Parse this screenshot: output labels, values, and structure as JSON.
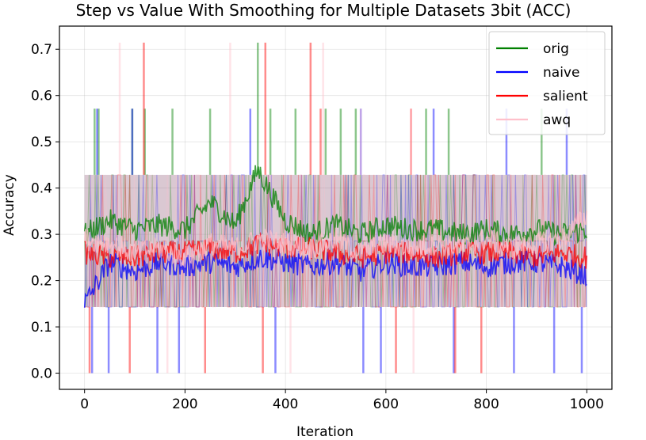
{
  "chart_data": {
    "type": "line",
    "title": "Step vs Value With Smoothing for Multiple Datasets 3bit (ACC)",
    "xlabel": "Iteration",
    "ylabel": "Accuracy",
    "xlim": [
      -50,
      1050
    ],
    "ylim": [
      -0.035,
      0.75
    ],
    "x_ticks": [
      0,
      200,
      400,
      600,
      800,
      1000
    ],
    "y_ticks": [
      0.0,
      0.1,
      0.2,
      0.3,
      0.4,
      0.5,
      0.6,
      0.7
    ],
    "x_tick_labels": [
      "0",
      "200",
      "400",
      "600",
      "800",
      "1000"
    ],
    "y_tick_labels": [
      "0.0",
      "0.1",
      "0.2",
      "0.3",
      "0.4",
      "0.5",
      "0.6",
      "0.7"
    ],
    "grid": true,
    "legend_position": "top-right",
    "x_range": [
      0,
      1000
    ],
    "raw_levels": [
      0.0,
      0.1429,
      0.2857,
      0.4286,
      0.5714,
      0.7143
    ],
    "series": [
      {
        "name": "orig",
        "color": "#008000",
        "raw_mean": 0.31,
        "smoothed_mean": 0.31,
        "smoothed": [
          [
            0,
            0.3
          ],
          [
            50,
            0.33
          ],
          [
            100,
            0.31
          ],
          [
            150,
            0.32
          ],
          [
            200,
            0.31
          ],
          [
            250,
            0.37
          ],
          [
            300,
            0.32
          ],
          [
            345,
            0.44
          ],
          [
            400,
            0.33
          ],
          [
            450,
            0.3
          ],
          [
            500,
            0.32
          ],
          [
            550,
            0.3
          ],
          [
            600,
            0.32
          ],
          [
            650,
            0.31
          ],
          [
            700,
            0.31
          ],
          [
            750,
            0.3
          ],
          [
            800,
            0.31
          ],
          [
            850,
            0.3
          ],
          [
            900,
            0.31
          ],
          [
            950,
            0.3
          ],
          [
            1000,
            0.31
          ]
        ],
        "spikes_high": [
          [
            20,
            0.5714
          ],
          [
            28,
            0.5714
          ],
          [
            95,
            0.5714
          ],
          [
            120,
            0.5714
          ],
          [
            175,
            0.5714
          ],
          [
            250,
            0.5714
          ],
          [
            345,
            0.7143
          ],
          [
            370,
            0.5714
          ],
          [
            420,
            0.5714
          ],
          [
            480,
            0.5714
          ],
          [
            510,
            0.5714
          ],
          [
            540,
            0.5714
          ],
          [
            680,
            0.5714
          ],
          [
            725,
            0.5714
          ],
          [
            910,
            0.5714
          ]
        ]
      },
      {
        "name": "naive",
        "color": "#0000ff",
        "raw_mean": 0.24,
        "smoothed_mean": 0.24,
        "smoothed": [
          [
            0,
            0.15
          ],
          [
            50,
            0.24
          ],
          [
            100,
            0.22
          ],
          [
            150,
            0.24
          ],
          [
            200,
            0.23
          ],
          [
            250,
            0.24
          ],
          [
            300,
            0.23
          ],
          [
            350,
            0.25
          ],
          [
            400,
            0.24
          ],
          [
            450,
            0.23
          ],
          [
            500,
            0.24
          ],
          [
            550,
            0.22
          ],
          [
            600,
            0.24
          ],
          [
            650,
            0.23
          ],
          [
            700,
            0.23
          ],
          [
            750,
            0.24
          ],
          [
            800,
            0.23
          ],
          [
            850,
            0.24
          ],
          [
            900,
            0.24
          ],
          [
            950,
            0.23
          ],
          [
            1000,
            0.21
          ]
        ],
        "spikes_high": [
          [
            25,
            0.5714
          ],
          [
            95,
            0.5714
          ],
          [
            330,
            0.5714
          ],
          [
            550,
            0.5714
          ],
          [
            695,
            0.5714
          ],
          [
            840,
            0.5714
          ],
          [
            960,
            0.5714
          ]
        ],
        "spikes_low": [
          [
            15,
            0.0
          ],
          [
            48,
            0.0
          ],
          [
            145,
            0.0
          ],
          [
            188,
            0.0
          ],
          [
            380,
            0.0
          ],
          [
            555,
            0.0
          ],
          [
            590,
            0.0
          ],
          [
            735,
            0.0
          ],
          [
            855,
            0.0
          ],
          [
            935,
            0.0
          ],
          [
            990,
            0.0
          ]
        ]
      },
      {
        "name": "salient",
        "color": "#ff0000",
        "raw_mean": 0.26,
        "smoothed_mean": 0.26,
        "smoothed": [
          [
            0,
            0.26
          ],
          [
            50,
            0.25
          ],
          [
            100,
            0.25
          ],
          [
            150,
            0.26
          ],
          [
            200,
            0.26
          ],
          [
            250,
            0.27
          ],
          [
            300,
            0.26
          ],
          [
            350,
            0.28
          ],
          [
            400,
            0.27
          ],
          [
            450,
            0.27
          ],
          [
            500,
            0.26
          ],
          [
            550,
            0.25
          ],
          [
            600,
            0.26
          ],
          [
            650,
            0.26
          ],
          [
            700,
            0.25
          ],
          [
            750,
            0.26
          ],
          [
            800,
            0.26
          ],
          [
            850,
            0.26
          ],
          [
            900,
            0.25
          ],
          [
            950,
            0.26
          ],
          [
            1000,
            0.25
          ]
        ],
        "spikes_high": [
          [
            118,
            0.7143
          ],
          [
            360,
            0.7143
          ],
          [
            450,
            0.7143
          ],
          [
            470,
            0.5714
          ],
          [
            650,
            0.5714
          ]
        ],
        "spikes_low": [
          [
            10,
            0.0
          ],
          [
            90,
            0.0
          ],
          [
            240,
            0.0
          ],
          [
            355,
            0.0
          ],
          [
            620,
            0.0
          ],
          [
            738,
            0.0
          ],
          [
            790,
            0.0
          ]
        ]
      },
      {
        "name": "awq",
        "color": "#ffc0cb",
        "raw_mean": 0.27,
        "smoothed_mean": 0.27,
        "smoothed": [
          [
            0,
            0.29
          ],
          [
            50,
            0.28
          ],
          [
            100,
            0.26
          ],
          [
            150,
            0.27
          ],
          [
            200,
            0.25
          ],
          [
            250,
            0.28
          ],
          [
            300,
            0.27
          ],
          [
            350,
            0.29
          ],
          [
            400,
            0.28
          ],
          [
            450,
            0.27
          ],
          [
            500,
            0.29
          ],
          [
            550,
            0.26
          ],
          [
            600,
            0.28
          ],
          [
            650,
            0.27
          ],
          [
            700,
            0.28
          ],
          [
            750,
            0.27
          ],
          [
            800,
            0.29
          ],
          [
            850,
            0.27
          ],
          [
            900,
            0.28
          ],
          [
            950,
            0.29
          ],
          [
            1000,
            0.34
          ]
        ],
        "spikes_high": [
          [
            70,
            0.7143
          ],
          [
            290,
            0.7143
          ],
          [
            475,
            0.7143
          ],
          [
            550,
            0.5714
          ],
          [
            650,
            0.5714
          ]
        ],
        "spikes_low": [
          [
            165,
            0.0
          ],
          [
            410,
            0.0
          ],
          [
            655,
            0.0
          ]
        ]
      }
    ]
  }
}
